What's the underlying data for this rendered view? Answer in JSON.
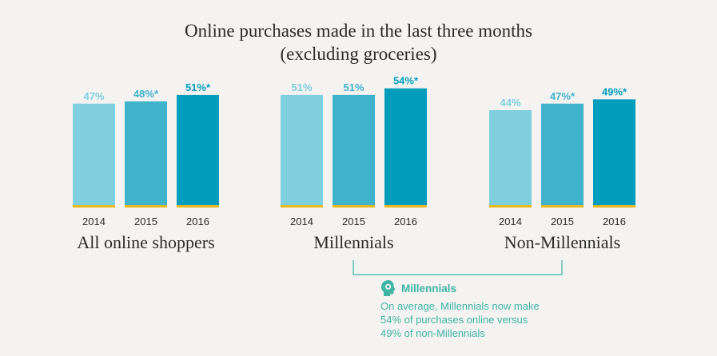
{
  "title": {
    "line1": "Online purchases made in the last three months",
    "line2": "(excluding groceries)"
  },
  "colors": {
    "2014": "#7fcfde",
    "2015": "#3fb3cc",
    "2016": "#009dbd",
    "baseline": "#e8b923",
    "callout": "#3fb5a4"
  },
  "chart_data": [
    {
      "type": "bar",
      "title": "All online shoppers",
      "categories": [
        "2014",
        "2015",
        "2016"
      ],
      "values": [
        47,
        48,
        51
      ],
      "data_labels": [
        "47%",
        "48%*",
        "51%*"
      ]
    },
    {
      "type": "bar",
      "title": "Millennials",
      "categories": [
        "2014",
        "2015",
        "2016"
      ],
      "values": [
        51,
        51,
        54
      ],
      "data_labels": [
        "51%",
        "51%",
        "54%*"
      ]
    },
    {
      "type": "bar",
      "title": "Non-Millennials",
      "categories": [
        "2014",
        "2015",
        "2016"
      ],
      "values": [
        44,
        47,
        49
      ],
      "data_labels": [
        "44%",
        "47%*",
        "49%*"
      ]
    }
  ],
  "callout": {
    "icon": "head-icon",
    "heading": "Millennials",
    "lines": [
      "On average, Millennials now make",
      "54% of purchases online versus",
      "49% of non-Millennials"
    ]
  }
}
